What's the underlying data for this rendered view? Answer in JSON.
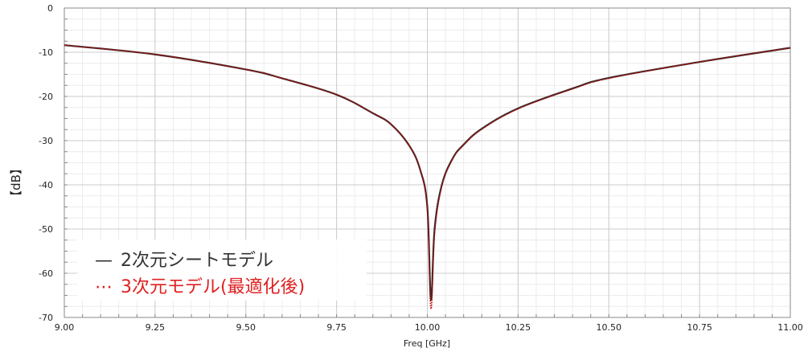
{
  "chart_data": {
    "type": "line",
    "xlabel": "Freq [GHz]",
    "ylabel": "【dB】",
    "xlim": [
      9.0,
      11.0
    ],
    "ylim": [
      -70,
      0
    ],
    "x_ticks": [
      9.0,
      9.25,
      9.5,
      9.75,
      10.0,
      10.25,
      10.5,
      10.75,
      11.0
    ],
    "x_tick_labels": [
      "9.00",
      "9.25",
      "9.50",
      "9.75",
      "10.00",
      "10.25",
      "10.50",
      "10.75",
      "11.00"
    ],
    "y_ticks": [
      0,
      -10,
      -20,
      -30,
      -40,
      -50,
      -60,
      -70
    ],
    "y_tick_labels": [
      "0",
      "-10",
      "-20",
      "-30",
      "-40",
      "-50",
      "-60",
      "-70"
    ],
    "grid": true,
    "legend_position": "bottom-left",
    "series": [
      {
        "name": "2次元シートモデル",
        "style": "solid",
        "color": "#333333",
        "legend_color": "#333333",
        "legend_symbol": "—",
        "x": [
          9.0,
          9.25,
          9.5,
          9.6,
          9.75,
          9.85,
          9.9,
          9.95,
          9.98,
          10.0,
          10.01,
          10.02,
          10.04,
          10.07,
          10.1,
          10.15,
          10.25,
          10.4,
          10.5,
          10.75,
          11.0
        ],
        "y": [
          -8.4,
          -10.5,
          -13.9,
          -15.9,
          -19.6,
          -23.8,
          -26.3,
          -31.1,
          -36.5,
          -45.0,
          -66.0,
          -50.0,
          -40.0,
          -34.0,
          -30.9,
          -27.3,
          -22.7,
          -18.2,
          -15.8,
          -12.2,
          -9.0
        ]
      },
      {
        "name": "3次元モデル(最適化後)",
        "style": "dotted",
        "color": "#c00000",
        "legend_color": "#e02020",
        "legend_symbol": "⋯",
        "x": [
          9.0,
          9.25,
          9.5,
          9.6,
          9.75,
          9.85,
          9.9,
          9.95,
          9.98,
          10.0,
          10.01,
          10.02,
          10.04,
          10.07,
          10.1,
          10.15,
          10.25,
          10.4,
          10.5,
          10.75,
          11.0
        ],
        "y": [
          -8.4,
          -10.5,
          -13.9,
          -15.9,
          -19.6,
          -23.8,
          -26.3,
          -31.1,
          -36.5,
          -45.5,
          -68.0,
          -51.0,
          -40.3,
          -34.1,
          -31.0,
          -27.4,
          -22.8,
          -18.3,
          -15.9,
          -12.2,
          -9.0
        ]
      }
    ]
  }
}
